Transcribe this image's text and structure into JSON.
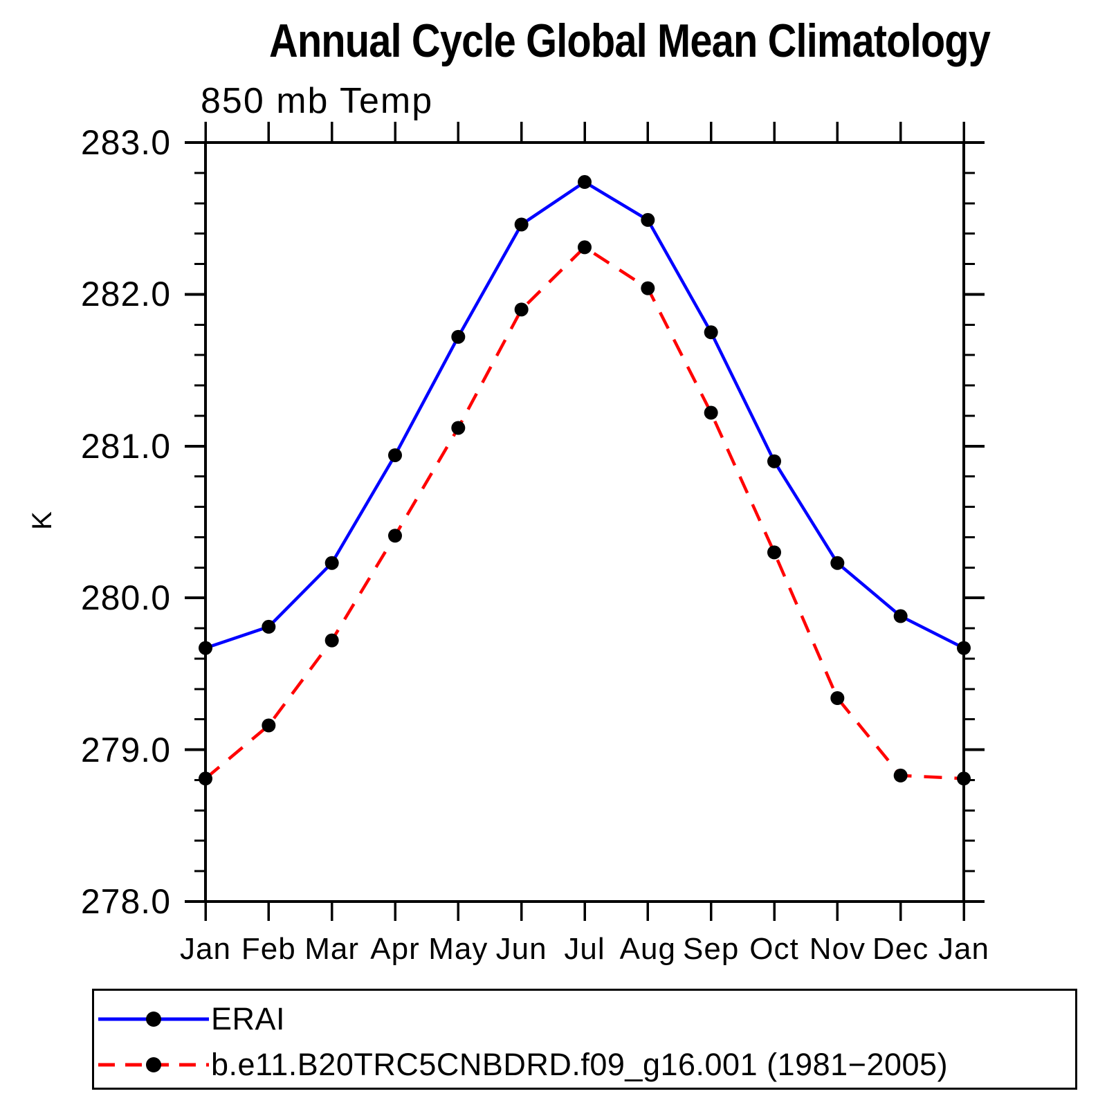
{
  "title": "Annual Cycle Global Mean Climatology",
  "subtitle": "850 mb Temp",
  "ylabel": "K",
  "chart_data": {
    "type": "line",
    "categories": [
      "Jan",
      "Feb",
      "Mar",
      "Apr",
      "May",
      "Jun",
      "Jul",
      "Aug",
      "Sep",
      "Oct",
      "Nov",
      "Dec",
      "Jan"
    ],
    "series": [
      {
        "name": "ERAI",
        "color": "#0000ff",
        "style": "solid",
        "marker": "circle",
        "marker_color": "#000000",
        "values": [
          279.67,
          279.81,
          280.23,
          280.94,
          281.72,
          282.46,
          282.74,
          282.49,
          281.75,
          280.9,
          280.23,
          279.88,
          279.67
        ]
      },
      {
        "name": "b.e11.B20TRC5CNBDRD.f09_g16.001 (1981−2005)",
        "color": "#ff0000",
        "style": "dashed",
        "marker": "circle",
        "marker_color": "#000000",
        "values": [
          278.81,
          279.16,
          279.72,
          280.41,
          281.12,
          281.9,
          282.31,
          282.04,
          281.22,
          280.3,
          279.34,
          278.83,
          278.81
        ]
      }
    ],
    "xlabel": "",
    "ylim": [
      278.0,
      283.0
    ],
    "y_major_step": 1.0,
    "y_minor_step": 0.2,
    "y_tick_labels": [
      "283.0",
      "282.0",
      "281.0",
      "280.0",
      "279.0",
      "278.0"
    ],
    "grid": false,
    "frame_color": "#000000",
    "legend_position": "bottom"
  }
}
